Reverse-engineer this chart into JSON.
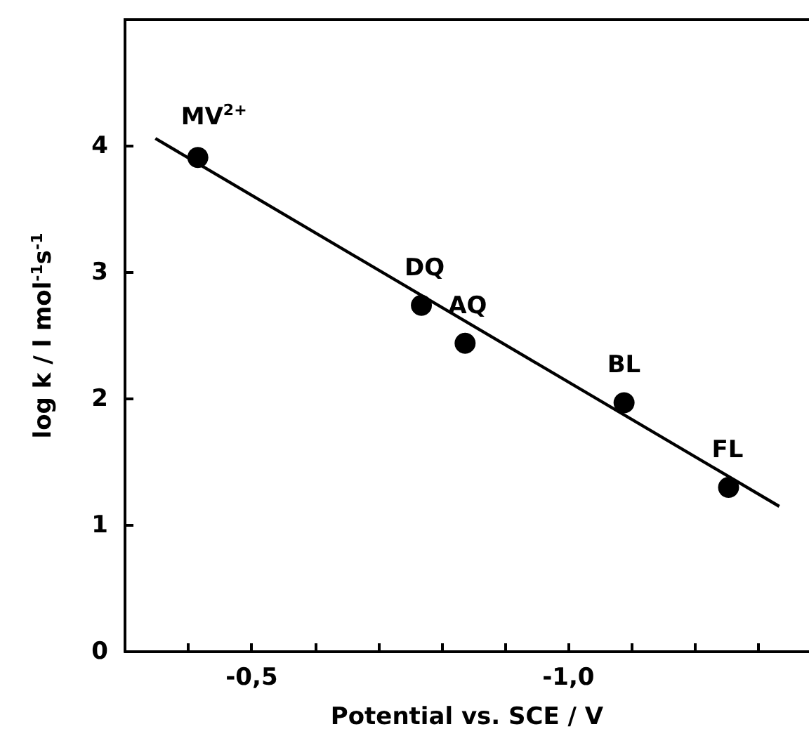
{
  "chart_data": {
    "type": "scatter",
    "xlabel": "Potential vs. SCE / V",
    "ylabel": "log k / l mol$^{-1}$s$^{-1}$",
    "xlim": [
      -0.3,
      -1.38
    ],
    "xticks": [
      {
        "value": -0.4,
        "label": null
      },
      {
        "value": -0.5,
        "label": "-0,5"
      },
      {
        "value": -0.6,
        "label": null
      },
      {
        "value": -0.7,
        "label": null
      },
      {
        "value": -0.8,
        "label": null
      },
      {
        "value": -0.9,
        "label": null
      },
      {
        "value": -1.0,
        "label": "-1,0"
      },
      {
        "value": -1.1,
        "label": null
      },
      {
        "value": -1.2,
        "label": null
      },
      {
        "value": -1.3,
        "label": null
      }
    ],
    "ylim": [
      0,
      5
    ],
    "yticks": [
      0,
      1,
      2,
      3,
      4
    ],
    "grid": false,
    "series": [
      {
        "marker": "circle",
        "color": "#000000",
        "x": [
          -0.415,
          -0.768,
          -0.837,
          -1.088,
          -1.253
        ],
        "values": [
          3.91,
          2.74,
          2.44,
          1.97,
          1.3
        ]
      },
      {
        "type": "line",
        "marker": "none",
        "color": "#000000",
        "x": [
          -0.348,
          -1.333
        ],
        "values": [
          4.06,
          1.15
        ]
      }
    ],
    "annotations": [
      {
        "text": "MV$^{2+}$",
        "x": -0.415,
        "y": 3.91
      },
      {
        "text": "DQ",
        "x": -0.768,
        "y": 2.74
      },
      {
        "text": "AQ",
        "x": -0.837,
        "y": 2.44
      },
      {
        "text": "BL",
        "x": -1.088,
        "y": 1.97
      },
      {
        "text": "FL",
        "x": -1.253,
        "y": 1.3
      }
    ]
  }
}
